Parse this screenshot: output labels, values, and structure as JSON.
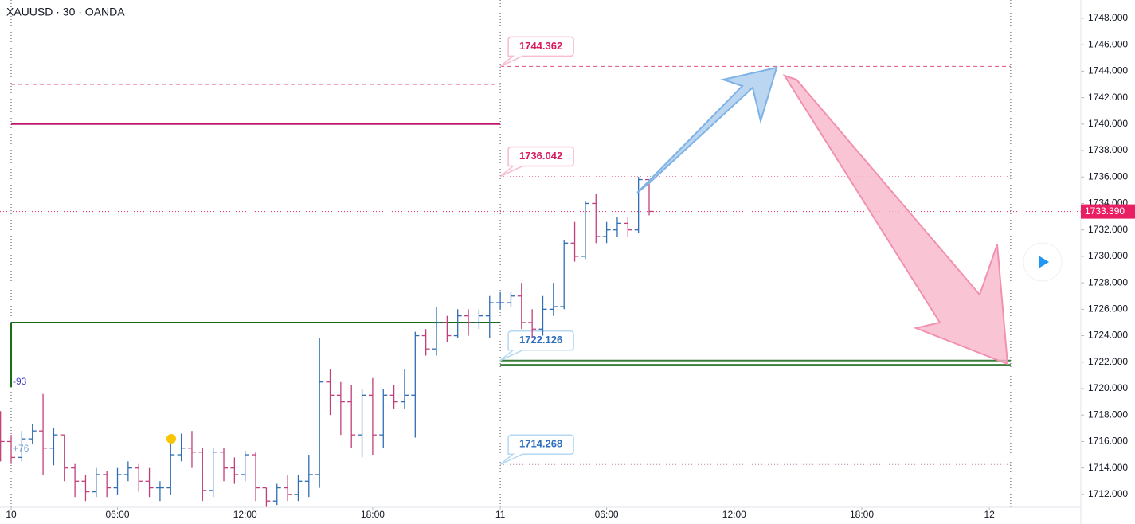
{
  "chart_data": {
    "type": "ohlc",
    "title": "XAUUSD · 30 · OANDA",
    "x": [
      -1,
      0,
      1,
      2,
      3,
      4,
      5,
      6,
      7,
      8,
      9,
      10,
      11,
      12,
      13,
      14,
      15,
      16,
      17,
      18,
      19,
      20,
      21,
      22,
      23,
      24,
      25,
      26,
      27,
      28,
      29,
      30,
      31,
      32,
      33,
      34,
      35,
      36,
      37,
      38,
      39,
      40,
      41,
      42,
      43,
      44,
      45,
      46,
      47,
      48,
      49,
      50,
      51,
      52,
      53,
      54,
      55,
      56,
      57,
      58,
      59,
      60
    ],
    "open": [
      1717,
      1716,
      1714.8,
      1716.2,
      1716.8,
      1715.5,
      1716.5,
      1714,
      1713,
      1712.2,
      1713.5,
      1712.5,
      1713.5,
      1714,
      1713,
      1712.5,
      1712.5,
      1715,
      1715.5,
      1715.2,
      1712.3,
      1715.2,
      1714,
      1713.5,
      1715,
      1712.5,
      1711.5,
      1712.5,
      1712,
      1713,
      1713.5,
      1720.5,
      1719.5,
      1719,
      1716.5,
      1719.5,
      1716.5,
      1719.5,
      1719,
      1719.5,
      1724,
      1723,
      1725,
      1724,
      1725.5,
      1725,
      1725.5,
      1726.5,
      1726.5,
      1727,
      1725,
      1724.5,
      1726,
      1726.2,
      1731,
      1730,
      1734,
      1731.5,
      1732,
      1732.5,
      1732,
      1735.8
    ],
    "high": [
      1718.3,
      1716.5,
      1716.8,
      1717.3,
      1719.6,
      1717,
      1716.5,
      1714.3,
      1713.5,
      1714,
      1713.8,
      1714,
      1714.5,
      1714.3,
      1714,
      1713,
      1716.2,
      1716.6,
      1716.8,
      1715.5,
      1715.5,
      1715.5,
      1714.8,
      1715.3,
      1715.2,
      1712.5,
      1712.8,
      1713.5,
      1713.5,
      1715,
      1723.8,
      1721.5,
      1720.5,
      1720.3,
      1720,
      1720.8,
      1720,
      1720.3,
      1721.5,
      1724.3,
      1724.5,
      1726.2,
      1725.5,
      1726,
      1726,
      1726,
      1727,
      1727.3,
      1727.3,
      1728,
      1726,
      1727,
      1728,
      1731.2,
      1732.6,
      1734.2,
      1734.7,
      1732.6,
      1733,
      1733,
      1736,
      1735.8
    ],
    "low": [
      1714.5,
      1714.3,
      1714.5,
      1715.8,
      1713.5,
      1714.2,
      1713,
      1711.8,
      1711.5,
      1711.8,
      1711.8,
      1712,
      1713,
      1712.2,
      1711.8,
      1711.5,
      1712,
      1714.5,
      1714,
      1711.5,
      1711.8,
      1713,
      1712.8,
      1713,
      1711.5,
      1711,
      1711.2,
      1711.5,
      1711.5,
      1711.8,
      1712.5,
      1718,
      1716.5,
      1715.5,
      1714.8,
      1715,
      1715.5,
      1718.5,
      1718.5,
      1716.3,
      1722.5,
      1722.5,
      1723.5,
      1723.8,
      1724,
      1724.5,
      1723.8,
      1726,
      1726.2,
      1724.5,
      1723.8,
      1724,
      1725.5,
      1726,
      1729.6,
      1729.8,
      1731,
      1731,
      1731.5,
      1731.5,
      1731.8,
      1733.1
    ],
    "close": [
      1716,
      1714.8,
      1716.2,
      1716.8,
      1715.5,
      1716.5,
      1714,
      1713,
      1712.2,
      1713.5,
      1712.5,
      1713.5,
      1714,
      1713,
      1712.5,
      1712.5,
      1715,
      1715.5,
      1715.2,
      1712.3,
      1715.2,
      1714,
      1713.5,
      1715,
      1712.5,
      1711.5,
      1712.5,
      1712,
      1713,
      1713.5,
      1720.5,
      1719.5,
      1719,
      1716.5,
      1719.5,
      1716.5,
      1719.5,
      1719,
      1719.5,
      1724,
      1723,
      1725,
      1724,
      1725.5,
      1725,
      1725.5,
      1726.5,
      1726.5,
      1727,
      1725,
      1724.5,
      1726,
      1726.2,
      1731,
      1730,
      1734,
      1731.5,
      1732,
      1732.5,
      1732,
      1735.8,
      1733.4
    ],
    "up_color": "#2f6db5",
    "down_color": "#c2407a",
    "xlim": [
      -1.05,
      100.6
    ],
    "xticks": [
      {
        "value": 0,
        "label": "10"
      },
      {
        "value": 10,
        "label": "06:00"
      },
      {
        "value": 22,
        "label": "12:00"
      },
      {
        "value": 34,
        "label": "18:00"
      },
      {
        "value": 46,
        "label": "11"
      },
      {
        "value": 56,
        "label": "06:00"
      },
      {
        "value": 68,
        "label": "12:00"
      },
      {
        "value": 80,
        "label": "18:00"
      },
      {
        "value": 92,
        "label": "12"
      }
    ],
    "ylim": [
      1711.03,
      1749.38
    ],
    "yticks": [
      {
        "value": 1712,
        "label": "1712.000"
      },
      {
        "value": 1714,
        "label": "1714.000"
      },
      {
        "value": 1716,
        "label": "1716.000"
      },
      {
        "value": 1718,
        "label": "1718.000"
      },
      {
        "value": 1720,
        "label": "1720.000"
      },
      {
        "value": 1722,
        "label": "1722.000"
      },
      {
        "value": 1724,
        "label": "1724.000"
      },
      {
        "value": 1726,
        "label": "1726.000"
      },
      {
        "value": 1728,
        "label": "1728.000"
      },
      {
        "value": 1730,
        "label": "1730.000"
      },
      {
        "value": 1732,
        "label": "1732.000"
      },
      {
        "value": 1734,
        "label": "1734.000"
      },
      {
        "value": 1736,
        "label": "1736.000"
      },
      {
        "value": 1738,
        "label": "1738.000"
      },
      {
        "value": 1740,
        "label": "1740.000"
      },
      {
        "value": 1742,
        "label": "1742.000"
      },
      {
        "value": 1744,
        "label": "1744.000"
      },
      {
        "value": 1746,
        "label": "1746.000"
      },
      {
        "value": 1748,
        "label": "1748.000"
      }
    ],
    "session_breaks": [
      0,
      46,
      94
    ],
    "last_price": {
      "value": 1733.39,
      "label": "1733.390",
      "color": "#e91e63"
    },
    "levels": [
      {
        "value": 1743,
        "from": 0,
        "to": 46,
        "style": "dashed",
        "color": "#e0508a"
      },
      {
        "value": 1740,
        "from": 0,
        "to": 46,
        "style": "solid",
        "color": "#c2186b"
      },
      {
        "value": 1725,
        "from": 0,
        "to": 46,
        "style": "solid",
        "color": "#1b6b1b",
        "vertical_from": 1720.1
      },
      {
        "value": 1744.362,
        "from": 46,
        "to": 94,
        "style": "dashed",
        "color": "#e0508a",
        "callout": true,
        "label_color": "#d81b60",
        "label_border": "#f8bbd0"
      },
      {
        "value": 1736.042,
        "from": 46,
        "to": 94,
        "style": "dotted",
        "color": "#e77fa8",
        "callout": true,
        "label_color": "#d81b60",
        "label_border": "#f8bbd0"
      },
      {
        "value": 1722.126,
        "from": 46,
        "to": 94,
        "style": "solid",
        "color": "#3a7d3a",
        "callout": true,
        "label_color": "#2f6fbf",
        "label_border": "#b3d9f2"
      },
      {
        "value": 1721.8,
        "from": 46,
        "to": 94,
        "style": "solid",
        "color": "#3a7d3a"
      },
      {
        "value": 1714.268,
        "from": 46,
        "to": 94,
        "style": "dotted",
        "color": "#b07aa8",
        "callout": true,
        "label_color": "#2f6fbf",
        "label_border": "#b3d9f2"
      }
    ],
    "annotations": [
      {
        "text": "-93",
        "color": "#3d3dc8"
      },
      {
        "text": "+76",
        "color": "#7aa7d8"
      }
    ]
  }
}
